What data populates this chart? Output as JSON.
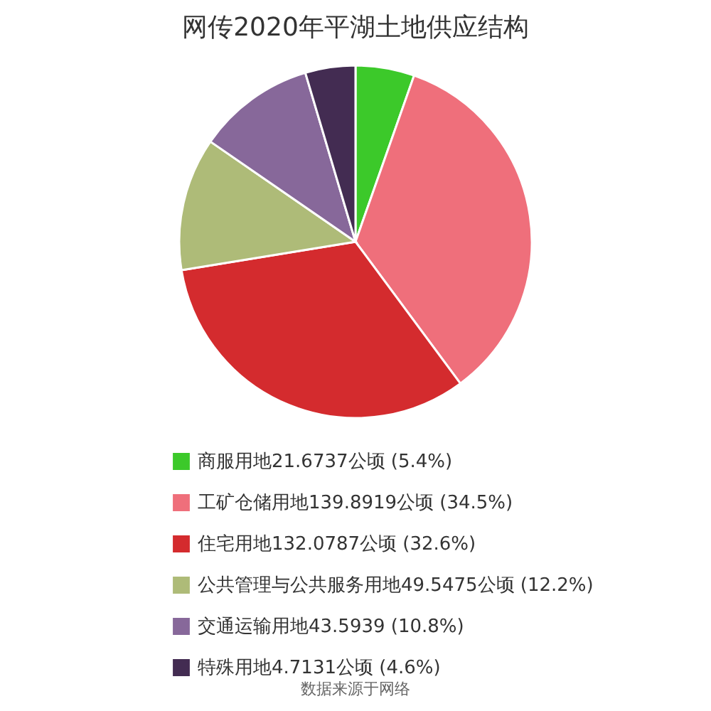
{
  "chart_data": {
    "type": "pie",
    "title": "网传2020年平湖土地供应结构",
    "categories": [
      "商服用地21.6737公顷 (5.4%)",
      "工矿仓储用地139.8919公顷 (34.5%)",
      "住宅用地132.0787公顷 (32.6%)",
      "公共管理与公共服务用地49.5475公顷 (12.2%)",
      "交通运输用地43.5939 (10.8%)",
      "特殊用地4.7131公顷 (4.6%)"
    ],
    "values": [
      5.4,
      34.5,
      32.6,
      12.2,
      10.8,
      4.6
    ],
    "colors": [
      "#3cc92a",
      "#ef6f7b",
      "#d42b2e",
      "#aebb78",
      "#87689a",
      "#432c52"
    ],
    "legend": "bottom",
    "annotations": [
      "数据来源于网络"
    ]
  }
}
